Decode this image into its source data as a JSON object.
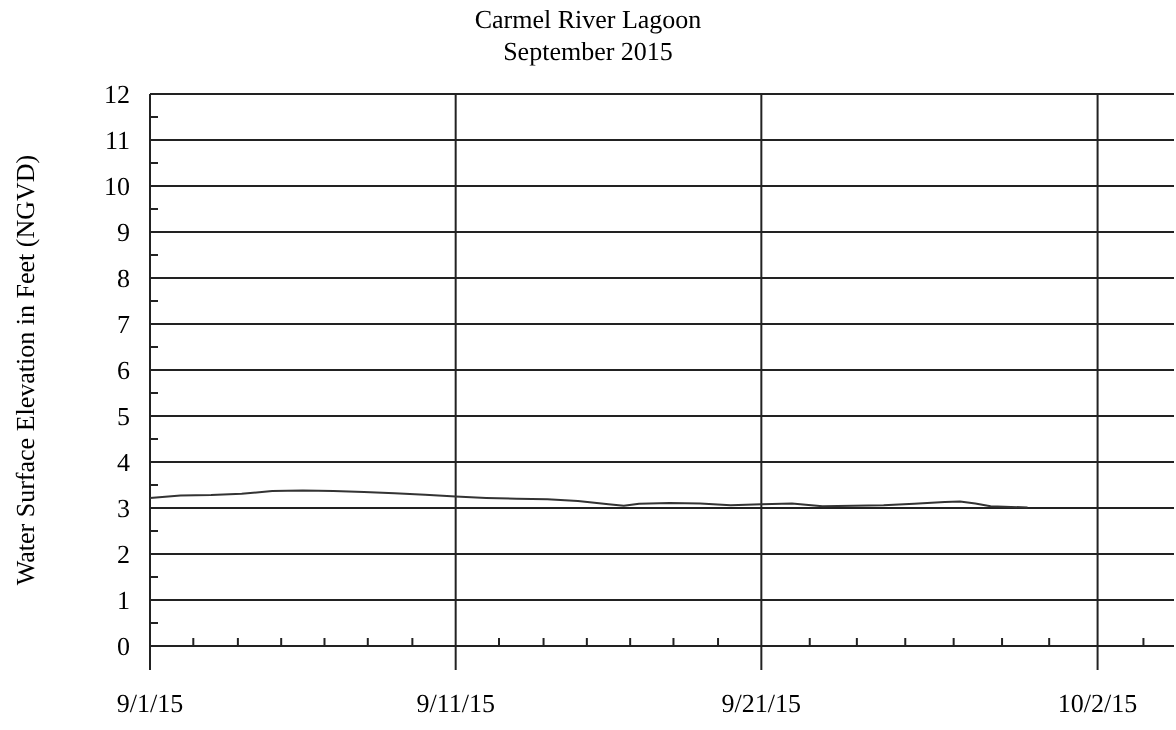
{
  "chart_data": {
    "type": "line",
    "title": "Carmel River Lagoon",
    "subtitle": "September 2015",
    "ylabel": "Water Surface Elevation in Feet (NGVD)",
    "x": [
      "2015-09-01",
      "2015-09-02",
      "2015-09-03",
      "2015-09-04",
      "2015-09-05",
      "2015-09-06",
      "2015-09-07",
      "2015-09-08",
      "2015-09-09",
      "2015-09-10",
      "2015-09-11",
      "2015-09-12",
      "2015-09-13",
      "2015-09-14",
      "2015-09-15",
      "2015-09-16",
      "2015-09-16T12:00",
      "2015-09-17",
      "2015-09-18",
      "2015-09-19",
      "2015-09-20",
      "2015-09-21",
      "2015-09-22",
      "2015-09-23",
      "2015-09-24",
      "2015-09-25",
      "2015-09-26",
      "2015-09-27",
      "2015-09-27T12:00",
      "2015-09-28",
      "2015-09-28T12:00",
      "2015-09-29T17:00"
    ],
    "series": [
      {
        "color": "#333333",
        "values": [
          3.22,
          3.27,
          3.28,
          3.31,
          3.37,
          3.38,
          3.37,
          3.35,
          3.32,
          3.29,
          3.25,
          3.22,
          3.2,
          3.19,
          3.15,
          3.08,
          3.05,
          3.09,
          3.11,
          3.1,
          3.06,
          3.08,
          3.1,
          3.04,
          3.05,
          3.06,
          3.09,
          3.13,
          3.14,
          3.1,
          3.04,
          3.01
        ]
      }
    ],
    "xlim": [
      "2015-09-01",
      "2015-10-04T12:00"
    ],
    "xticks": [
      {
        "value": "2015-09-01",
        "label": "9/1/15"
      },
      {
        "value": "2015-09-02T10:00",
        "label": null
      },
      {
        "value": "2015-09-03T21:00",
        "label": null
      },
      {
        "value": "2015-09-05T07:00",
        "label": null
      },
      {
        "value": "2015-09-06T17:00",
        "label": null
      },
      {
        "value": "2015-09-08T03:00",
        "label": null
      },
      {
        "value": "2015-09-09T14:00",
        "label": null
      },
      {
        "value": "2015-09-11",
        "label": "9/11/15"
      },
      {
        "value": "2015-09-12T10:00",
        "label": null
      },
      {
        "value": "2015-09-13T21:00",
        "label": null
      },
      {
        "value": "2015-09-15T07:00",
        "label": null
      },
      {
        "value": "2015-09-16T17:00",
        "label": null
      },
      {
        "value": "2015-09-18T03:00",
        "label": null
      },
      {
        "value": "2015-09-19T14:00",
        "label": null
      },
      {
        "value": "2015-09-21",
        "label": "9/21/15"
      },
      {
        "value": "2015-09-22T14:00",
        "label": null
      },
      {
        "value": "2015-09-24T03:00",
        "label": null
      },
      {
        "value": "2015-09-25T17:00",
        "label": null
      },
      {
        "value": "2015-09-27T07:00",
        "label": null
      },
      {
        "value": "2015-09-28T21:00",
        "label": null
      },
      {
        "value": "2015-09-30T10:00",
        "label": null
      },
      {
        "value": "2015-10-02",
        "label": "10/2/15"
      },
      {
        "value": "2015-10-03T12:00",
        "label": null
      }
    ],
    "ylim": [
      0,
      12
    ],
    "yticks": [
      0,
      {
        "value": 0.5,
        "label": null
      },
      1,
      {
        "value": 1.5,
        "label": null
      },
      2,
      {
        "value": 2.5,
        "label": null
      },
      3,
      {
        "value": 3.5,
        "label": null
      },
      4,
      {
        "value": 4.5,
        "label": null
      },
      5,
      {
        "value": 5.5,
        "label": null
      },
      6,
      {
        "value": 6.5,
        "label": null
      },
      7,
      {
        "value": 7.5,
        "label": null
      },
      8,
      {
        "value": 8.5,
        "label": null
      },
      9,
      {
        "value": 9.5,
        "label": null
      },
      10,
      {
        "value": 10.5,
        "label": null
      },
      11,
      {
        "value": 11.5,
        "label": null
      },
      12
    ],
    "grid": true,
    "marker": "none",
    "line_style": "solid"
  }
}
